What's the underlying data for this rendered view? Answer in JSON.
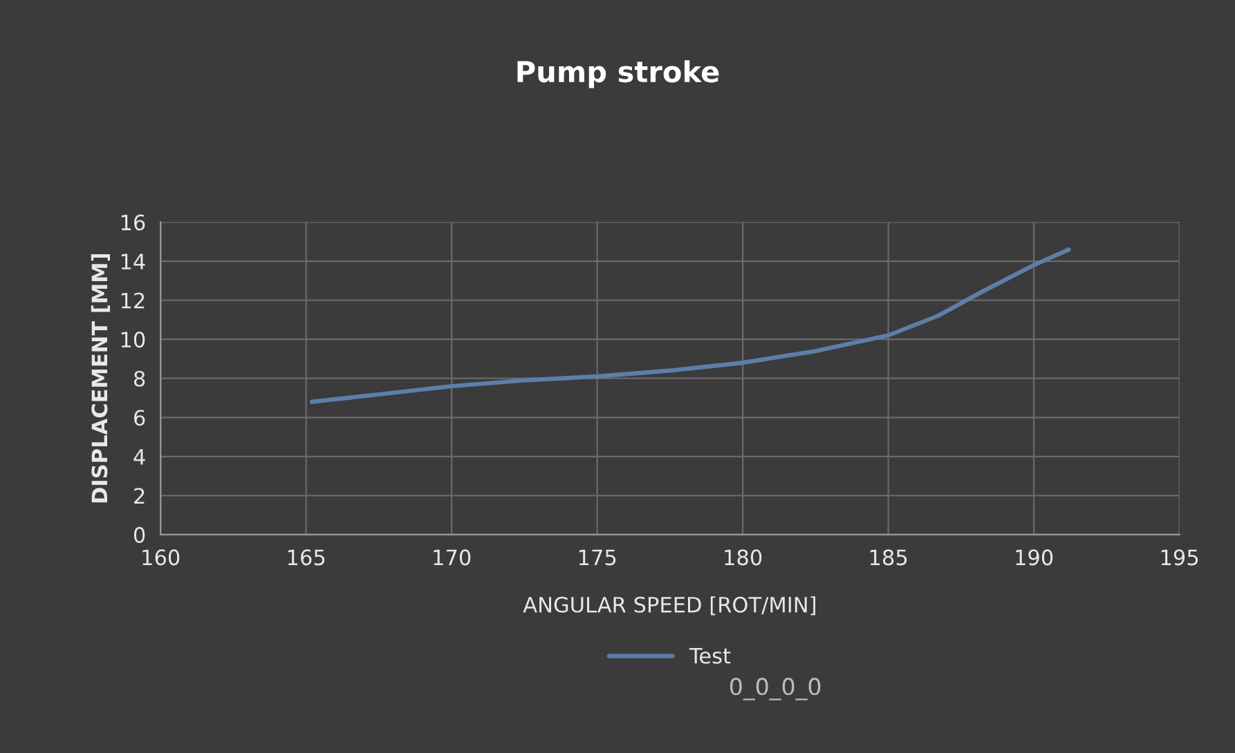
{
  "chart_data": {
    "type": "line",
    "title": "Pump stroke",
    "xlabel": "ANGULAR SPEED [ROT/MIN]",
    "ylabel": "DISPLACEMENT [MM]",
    "series": [
      {
        "name": "Test",
        "color": "#5b7fa8",
        "x": [
          165.2,
          167,
          170,
          172.5,
          175,
          177.5,
          180,
          182.5,
          185,
          186.7,
          188.3,
          190,
          191.2
        ],
        "values": [
          6.8,
          7.1,
          7.6,
          7.9,
          8.1,
          8.4,
          8.8,
          9.4,
          10.2,
          11.2,
          12.5,
          13.8,
          14.6
        ]
      }
    ],
    "annotations": [
      "0_0_0_0"
    ],
    "xlim": [
      160,
      195
    ],
    "xticks": [
      160,
      165,
      170,
      175,
      180,
      185,
      190,
      195
    ],
    "ylim": [
      0,
      16
    ],
    "yticks": [
      0,
      2,
      4,
      6,
      8,
      10,
      12,
      14,
      16
    ],
    "grid": true,
    "legend": "bottom",
    "marker": "none",
    "line_style": "solid"
  }
}
